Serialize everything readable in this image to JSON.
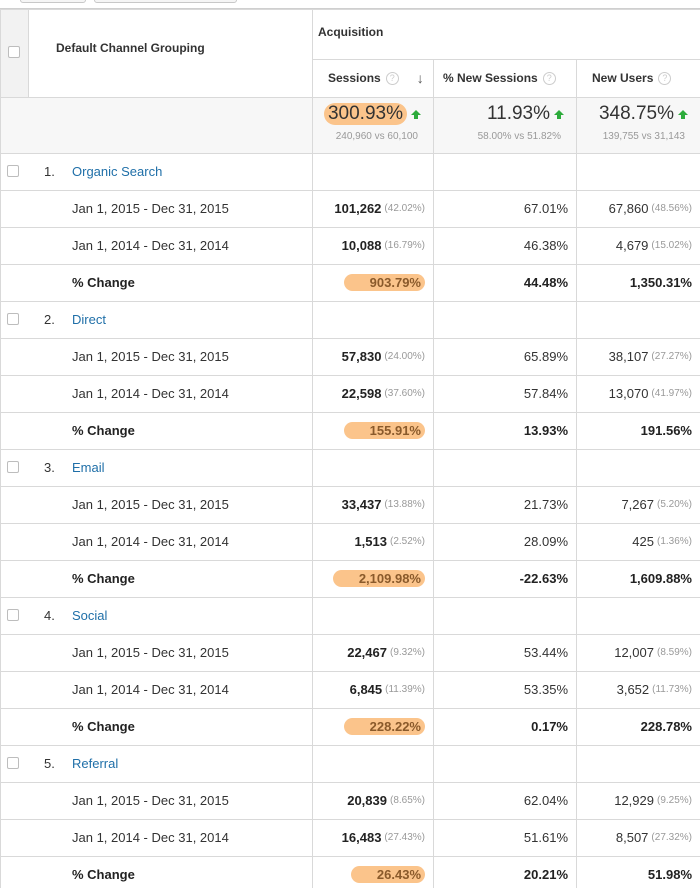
{
  "header": {
    "dimension_label": "Default Channel Grouping",
    "group_label": "Acquisition",
    "columns": [
      {
        "label": "Sessions",
        "help": "?",
        "sort": "↓"
      },
      {
        "label": "% New Sessions",
        "help": "?"
      },
      {
        "label": "New Users",
        "help": "?"
      }
    ]
  },
  "totals": {
    "sessions": {
      "change": "300.93%",
      "compare": "240,960 vs 60,100"
    },
    "new_sessions": {
      "change": "11.93%",
      "compare": "58.00% vs 51.82%"
    },
    "new_users": {
      "change": "348.75%",
      "compare": "139,755 vs 31,143"
    }
  },
  "channels": [
    {
      "index": "1.",
      "name": "Organic Search",
      "rows": [
        {
          "label": "Jan 1, 2015 - Dec 31, 2015",
          "sessions": "101,262",
          "sessions_pct": "(42.02%)",
          "new_sessions": "67.01%",
          "new_users": "67,860",
          "new_users_pct": "(48.56%)"
        },
        {
          "label": "Jan 1, 2014 - Dec 31, 2014",
          "sessions": "10,088",
          "sessions_pct": "(16.79%)",
          "new_sessions": "46.38%",
          "new_users": "4,679",
          "new_users_pct": "(15.02%)"
        }
      ],
      "change": {
        "label": "% Change",
        "sessions": "903.79%",
        "new_sessions": "44.48%",
        "new_users": "1,350.31%"
      }
    },
    {
      "index": "2.",
      "name": "Direct",
      "rows": [
        {
          "label": "Jan 1, 2015 - Dec 31, 2015",
          "sessions": "57,830",
          "sessions_pct": "(24.00%)",
          "new_sessions": "65.89%",
          "new_users": "38,107",
          "new_users_pct": "(27.27%)"
        },
        {
          "label": "Jan 1, 2014 - Dec 31, 2014",
          "sessions": "22,598",
          "sessions_pct": "(37.60%)",
          "new_sessions": "57.84%",
          "new_users": "13,070",
          "new_users_pct": "(41.97%)"
        }
      ],
      "change": {
        "label": "% Change",
        "sessions": "155.91%",
        "new_sessions": "13.93%",
        "new_users": "191.56%"
      }
    },
    {
      "index": "3.",
      "name": "Email",
      "rows": [
        {
          "label": "Jan 1, 2015 - Dec 31, 2015",
          "sessions": "33,437",
          "sessions_pct": "(13.88%)",
          "new_sessions": "21.73%",
          "new_users": "7,267",
          "new_users_pct": "(5.20%)"
        },
        {
          "label": "Jan 1, 2014 - Dec 31, 2014",
          "sessions": "1,513",
          "sessions_pct": "(2.52%)",
          "new_sessions": "28.09%",
          "new_users": "425",
          "new_users_pct": "(1.36%)"
        }
      ],
      "change": {
        "label": "% Change",
        "sessions": "2,109.98%",
        "new_sessions": "-22.63%",
        "new_users": "1,609.88%"
      }
    },
    {
      "index": "4.",
      "name": "Social",
      "rows": [
        {
          "label": "Jan 1, 2015 - Dec 31, 2015",
          "sessions": "22,467",
          "sessions_pct": "(9.32%)",
          "new_sessions": "53.44%",
          "new_users": "12,007",
          "new_users_pct": "(8.59%)"
        },
        {
          "label": "Jan 1, 2014 - Dec 31, 2014",
          "sessions": "6,845",
          "sessions_pct": "(11.39%)",
          "new_sessions": "53.35%",
          "new_users": "3,652",
          "new_users_pct": "(11.73%)"
        }
      ],
      "change": {
        "label": "% Change",
        "sessions": "228.22%",
        "new_sessions": "0.17%",
        "new_users": "228.78%"
      }
    },
    {
      "index": "5.",
      "name": "Referral",
      "rows": [
        {
          "label": "Jan 1, 2015 - Dec 31, 2015",
          "sessions": "20,839",
          "sessions_pct": "(8.65%)",
          "new_sessions": "62.04%",
          "new_users": "12,929",
          "new_users_pct": "(9.25%)"
        },
        {
          "label": "Jan 1, 2014 - Dec 31, 2014",
          "sessions": "16,483",
          "sessions_pct": "(27.43%)",
          "new_sessions": "51.61%",
          "new_users": "8,507",
          "new_users_pct": "(27.32%)"
        }
      ],
      "change": {
        "label": "% Change",
        "sessions": "26.43%",
        "new_sessions": "20.21%",
        "new_users": "51.98%"
      }
    }
  ],
  "colors": {
    "link": "#1f6fa8",
    "highlight": "#fbc48b",
    "up_arrow": "#2dab3b",
    "grid": "#d9d9d9"
  }
}
